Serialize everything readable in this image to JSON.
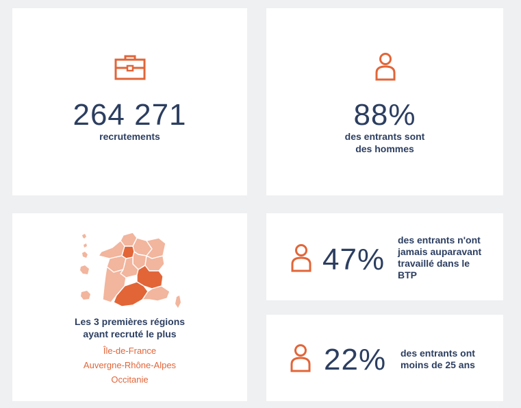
{
  "recruitments": {
    "value": "264 271",
    "label": "recrutements",
    "icon": "briefcase-icon"
  },
  "men": {
    "value": "88%",
    "label_line1": "des entrants sont",
    "label_line2": "des hommes",
    "icon": "person-icon"
  },
  "regions": {
    "title_line1": "Les 3 premières régions",
    "title_line2": "ayant recruté le plus",
    "items": [
      "Île-de-France",
      "Auvergne-Rhône-Alpes",
      "Occitanie"
    ],
    "icon": "france-map-icon"
  },
  "never_worked": {
    "value": "47%",
    "label_lines": [
      "des entrants n'ont",
      "jamais auparavant",
      "travaillé dans le",
      "BTP"
    ],
    "icon": "person-icon"
  },
  "under_25": {
    "value": "22%",
    "label_lines": [
      "des entrants ont",
      "moins de 25 ans"
    ],
    "icon": "person-icon"
  },
  "colors": {
    "accent": "#e26538",
    "text": "#2c3e60",
    "map_light": "#f2b59d",
    "background": "#eef0f2"
  }
}
